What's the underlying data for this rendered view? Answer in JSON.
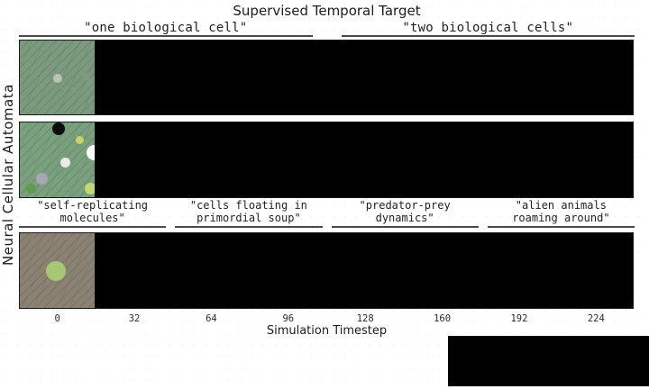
{
  "figure": {
    "title": "Supervised Temporal Target",
    "xlabel": "Simulation Timestep",
    "ylabel": "Neural Cellular Automata"
  },
  "group_labels": {
    "top": [
      "\"one biological cell\"",
      "\"two biological cells\""
    ],
    "bottom": [
      "\"self-replicating\nmolecules\"",
      "\"cells floating in\nprimordial soup\"",
      "\"predator-prey\ndynamics\"",
      "\"alien animals\nroaming around\""
    ]
  },
  "x_ticks": [
    "0",
    "32",
    "64",
    "96",
    "128",
    "160",
    "192",
    "224"
  ],
  "colors": {
    "strip_bg": "#000000",
    "frame": "#1a1a1a",
    "underline": "#4a4a4a",
    "text": "#1c1c1c"
  },
  "rows": [
    {
      "name": "row-1-frame0",
      "square_color": "#7b9a7e",
      "dots": [
        {
          "x": 51,
          "y": 51,
          "d": 10,
          "color": "#bcc2b3"
        },
        {
          "x": 89,
          "y": 49,
          "d": 9,
          "color": "#859681"
        }
      ]
    },
    {
      "name": "row-2-frame0",
      "square_color": "#7aa07d",
      "dots": [
        {
          "x": 52,
          "y": 9,
          "d": 14,
          "color": "#0c0c0c"
        },
        {
          "x": 80,
          "y": 23,
          "d": 9,
          "color": "#c6d468"
        },
        {
          "x": 99,
          "y": 40,
          "d": 17,
          "color": "#fdfdfd"
        },
        {
          "x": 61,
          "y": 54,
          "d": 11,
          "color": "#e9ebe6"
        },
        {
          "x": 30,
          "y": 75,
          "d": 13,
          "color": "#a7a7b1"
        },
        {
          "x": 15,
          "y": 89,
          "d": 11,
          "color": "#5f9c52"
        },
        {
          "x": 95,
          "y": 88,
          "d": 13,
          "color": "#c3d96e"
        }
      ]
    },
    {
      "name": "row-3-frame0",
      "square_color": "#8b8273",
      "dots": [
        {
          "x": 48,
          "y": 50,
          "d": 22,
          "color": "#a6c873"
        }
      ]
    }
  ],
  "chart_data": {
    "type": "heatmap",
    "title": "Supervised Temporal Target",
    "xlabel": "Simulation Timestep",
    "ylabel": "Neural Cellular Automata",
    "x_ticks": [
      0,
      32,
      64,
      96,
      128,
      160,
      192,
      224
    ],
    "timestep_per_cell": 32,
    "grid": false,
    "description": "Three horizontal strips of neural cellular automata rollouts on a shared timestep axis; only the timestep-0 frame at the far left of each strip is rendered, all later timesteps are black.",
    "rows": [
      {
        "supervised_prompts": [
          "one biological cell",
          "two biological cells"
        ],
        "frame0": "sage-green substrate with one pale gray cell dot"
      },
      {
        "supervised_prompts": [
          "one biological cell",
          "two biological cells"
        ],
        "frame0": "green substrate with several cells (black, white, gray, lavender, green, yellow-green)"
      },
      {
        "supervised_prompts": [
          "self-replicating molecules",
          "cells floating in primordial soup",
          "predator-prey dynamics",
          "alien animals roaming around"
        ],
        "frame0": "taupe substrate with one yellow-green cell"
      }
    ]
  }
}
